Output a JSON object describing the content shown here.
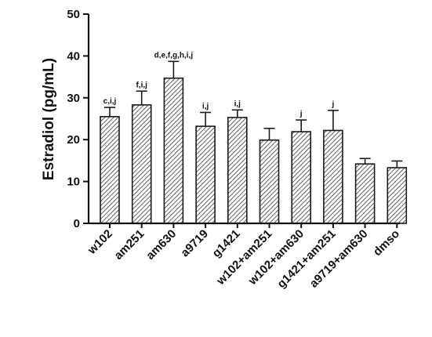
{
  "chart_data": {
    "type": "bar",
    "title": "",
    "xlabel": "",
    "ylabel": "Estradiol (pg/mL)",
    "ylim": [
      0,
      50
    ],
    "yticks": [
      0,
      10,
      20,
      30,
      40,
      50
    ],
    "grid": false,
    "categories": [
      "w102",
      "am251",
      "am630",
      "a9719",
      "g1421",
      "w102+am251",
      "w102+am630",
      "g1421+am251",
      "a9719+am630",
      "dmso"
    ],
    "values": [
      25.5,
      28.3,
      34.7,
      23.2,
      25.3,
      19.9,
      21.9,
      22.2,
      14.2,
      13.3
    ],
    "errors": [
      2.2,
      3.3,
      4.0,
      3.3,
      1.8,
      2.8,
      2.8,
      4.8,
      1.3,
      1.6
    ],
    "significance": [
      "c,i,j",
      "f,i,j",
      "d,e,f,g,h,i,j",
      "i,j",
      "i,j",
      "",
      "j",
      "j",
      "",
      ""
    ],
    "bar_fill": "hatched",
    "colors": {
      "bar_stroke": "#1a1a1a",
      "hatch": "#3a3a3a",
      "bar_bg": "#ffffff",
      "axis": "#111111"
    }
  }
}
